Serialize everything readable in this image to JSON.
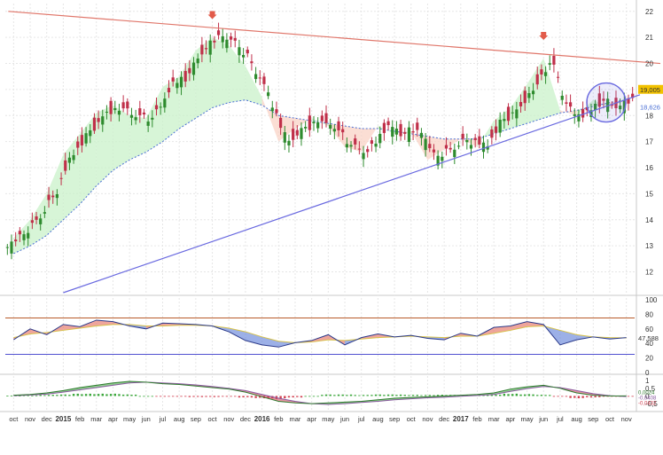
{
  "price_axis_ticks": [
    "22",
    "21",
    "20",
    "19",
    "18",
    "17",
    "16",
    "15",
    "14",
    "13",
    "12"
  ],
  "price_badges": {
    "last": "19,005",
    "ma": "18,626"
  },
  "rsi_axis_ticks": [
    "100",
    "80",
    "60",
    "40",
    "20",
    "0"
  ],
  "rsi_value_label": "47,588",
  "macd_axis_ticks": [
    "1",
    "0,5",
    "0",
    "-0,5"
  ],
  "macd_value_labels": [
    "0,0024",
    "-0,0408",
    "-0,0432"
  ],
  "x_axis_labels": [
    "oct",
    "nov",
    "dec",
    "2015",
    "feb",
    "mar",
    "apr",
    "may",
    "jun",
    "jul",
    "aug",
    "sep",
    "oct",
    "nov",
    "dec",
    "2016",
    "feb",
    "mar",
    "apr",
    "may",
    "jun",
    "jul",
    "aug",
    "sep",
    "oct",
    "nov",
    "dec",
    "2017",
    "feb",
    "mar",
    "apr",
    "may",
    "jun",
    "jul",
    "aug",
    "sep",
    "oct",
    "nov"
  ],
  "colors": {
    "up": "#2e8b2e",
    "down": "#c0304a",
    "resistance_line": "#e0766a",
    "support_line": "#6a6ae0",
    "ma_line": "#4a6fd4",
    "cloud_green": "#c9f2c9",
    "cloud_red": "#f9d3c6",
    "rsi_upper": "#b85a2a",
    "rsi_lower": "#5050d0",
    "badge_last": "#f2c200",
    "badge_ma": "#4a6fd4"
  },
  "chart_data": [
    {
      "type": "candlestick",
      "title": "",
      "ylim": [
        11.2,
        22.3
      ],
      "x": [
        "oct",
        "nov",
        "dec",
        "2015",
        "feb",
        "mar",
        "apr",
        "may",
        "jun",
        "jul",
        "aug",
        "sep",
        "oct",
        "nov",
        "dec",
        "2016",
        "feb",
        "mar",
        "apr",
        "may",
        "jun",
        "jul",
        "aug",
        "sep",
        "oct",
        "nov",
        "dec",
        "2017",
        "feb",
        "mar",
        "apr",
        "may",
        "jun",
        "jul",
        "aug",
        "sep",
        "oct",
        "nov"
      ],
      "close_path": [
        13.3,
        14.0,
        15.0,
        16.5,
        17.3,
        18.1,
        18.4,
        18.0,
        17.9,
        19.1,
        19.5,
        20.5,
        21.0,
        20.7,
        19.9,
        18.7,
        17.0,
        17.5,
        17.9,
        17.6,
        16.8,
        16.6,
        17.6,
        17.3,
        17.4,
        16.3,
        16.7,
        17.1,
        16.8,
        17.8,
        18.3,
        19.2,
        20.2,
        18.2,
        18.0,
        18.6,
        18.3,
        18.6
      ],
      "ma_path": [
        12.7,
        13.0,
        13.4,
        14.0,
        14.6,
        15.3,
        15.9,
        16.3,
        16.6,
        17.0,
        17.5,
        17.9,
        18.3,
        18.5,
        18.6,
        18.4,
        18.0,
        17.9,
        17.8,
        17.7,
        17.6,
        17.5,
        17.5,
        17.4,
        17.3,
        17.2,
        17.1,
        17.1,
        17.1,
        17.3,
        17.5,
        17.7,
        17.9,
        18.1,
        18.2,
        18.35,
        18.5,
        18.6
      ],
      "resistance_line": [
        [
          0,
          22.0
        ],
        [
          37,
          20.0
        ]
      ],
      "support_line": [
        [
          3,
          11.2
        ],
        [
          37,
          18.8
        ]
      ],
      "markers": [
        "arrow-down at 2015 nov peak",
        "arrow-down at 2017 jun peak",
        "circle around 2017 oct-nov"
      ],
      "last_value": 19.005,
      "ma_value": 18.626
    },
    {
      "type": "line",
      "ylim": [
        0,
        100
      ],
      "reference_lines": [
        75,
        25
      ],
      "x": [
        "oct",
        "nov",
        "dec",
        "2015",
        "feb",
        "mar",
        "apr",
        "may",
        "jun",
        "jul",
        "aug",
        "sep",
        "oct",
        "nov",
        "dec",
        "2016",
        "feb",
        "mar",
        "apr",
        "may",
        "jun",
        "jul",
        "aug",
        "sep",
        "oct",
        "nov",
        "dec",
        "2017",
        "feb",
        "mar",
        "apr",
        "may",
        "jun",
        "jul",
        "aug",
        "sep",
        "oct",
        "nov"
      ],
      "series": [
        {
          "values": [
            45,
            60,
            52,
            66,
            63,
            72,
            70,
            64,
            60,
            68,
            67,
            66,
            64,
            56,
            44,
            38,
            35,
            41,
            44,
            52,
            38,
            48,
            53,
            49,
            51,
            47,
            45,
            54,
            50,
            62,
            64,
            70,
            66,
            38,
            45,
            49,
            46,
            48
          ]
        },
        {
          "values": [
            48,
            53,
            55,
            58,
            61,
            64,
            66,
            66,
            64,
            64,
            65,
            65,
            64,
            61,
            56,
            49,
            43,
            41,
            42,
            45,
            44,
            46,
            48,
            49,
            50,
            49,
            48,
            50,
            50,
            54,
            58,
            63,
            64,
            58,
            52,
            49,
            48,
            47.6
          ]
        }
      ],
      "last_value": 47.588
    },
    {
      "type": "bar",
      "ylim": [
        -0.9,
        1.3
      ],
      "x": [
        "oct",
        "nov",
        "dec",
        "2015",
        "feb",
        "mar",
        "apr",
        "may",
        "jun",
        "jul",
        "aug",
        "sep",
        "oct",
        "nov",
        "dec",
        "2016",
        "feb",
        "mar",
        "apr",
        "may",
        "jun",
        "jul",
        "aug",
        "sep",
        "oct",
        "nov",
        "dec",
        "2017",
        "feb",
        "mar",
        "apr",
        "may",
        "jun",
        "jul",
        "aug",
        "sep",
        "oct",
        "nov"
      ],
      "series": [
        {
          "values": [
            0.05,
            0.1,
            0.2,
            0.35,
            0.55,
            0.7,
            0.85,
            0.95,
            0.9,
            0.8,
            0.75,
            0.65,
            0.55,
            0.45,
            0.25,
            -0.05,
            -0.35,
            -0.45,
            -0.5,
            -0.45,
            -0.4,
            -0.35,
            -0.25,
            -0.15,
            -0.1,
            -0.05,
            0.0,
            0.05,
            0.1,
            0.2,
            0.45,
            0.6,
            0.7,
            0.5,
            0.2,
            0.05,
            0.0,
            0.0024
          ]
        },
        {
          "values": [
            0.02,
            0.06,
            0.12,
            0.25,
            0.4,
            0.55,
            0.7,
            0.85,
            0.9,
            0.85,
            0.8,
            0.72,
            0.62,
            0.5,
            0.35,
            0.1,
            -0.15,
            -0.35,
            -0.5,
            -0.55,
            -0.5,
            -0.42,
            -0.35,
            -0.25,
            -0.18,
            -0.12,
            -0.08,
            -0.02,
            0.03,
            0.1,
            0.3,
            0.48,
            0.62,
            0.55,
            0.35,
            0.15,
            0.02,
            -0.0408
          ]
        },
        {
          "values": [
            0.03,
            0.04,
            0.08,
            0.1,
            0.15,
            0.15,
            0.15,
            0.1,
            0.0,
            -0.05,
            -0.05,
            -0.07,
            -0.07,
            -0.05,
            -0.1,
            -0.15,
            -0.2,
            -0.1,
            0.0,
            0.1,
            0.1,
            0.07,
            0.1,
            0.1,
            0.08,
            0.07,
            0.08,
            0.07,
            0.07,
            0.1,
            0.15,
            0.12,
            0.08,
            -0.05,
            -0.15,
            -0.1,
            -0.02,
            -0.0432
          ]
        }
      ]
    }
  ]
}
